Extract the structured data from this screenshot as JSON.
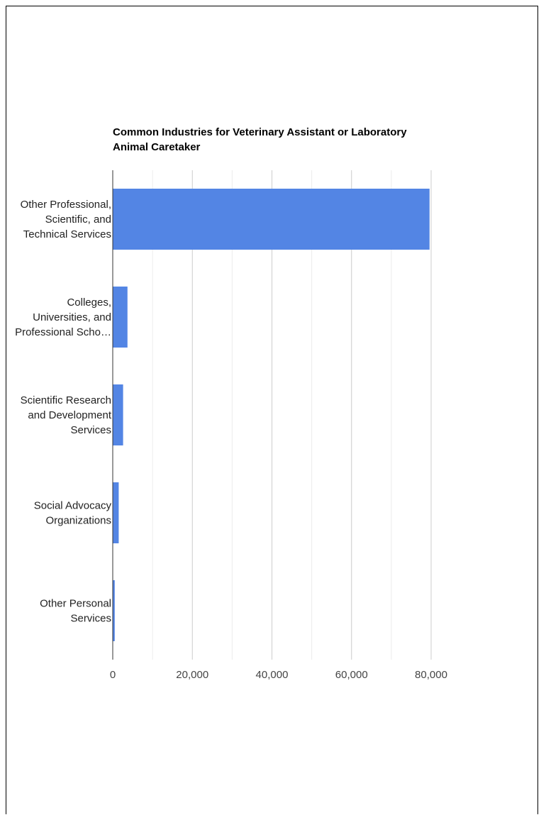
{
  "chart_data": {
    "type": "bar",
    "orientation": "horizontal",
    "title": "Common Industries for Veterinary Assistant or Laboratory Animal Caretaker",
    "title_lines": [
      "Common Industries for Veterinary Assistant or Laboratory",
      "Animal Caretaker"
    ],
    "categories": [
      "Other Professional, Scientific, and Technical Services",
      "Colleges, Universities, and Professional Schools",
      "Scientific Research and Development Services",
      "Social Advocacy Organizations",
      "Other Personal Services"
    ],
    "category_label_lines": [
      [
        "Other Professional,",
        "Scientific, and",
        "Technical Services"
      ],
      [
        "Colleges,",
        "Universities, and",
        "Professional Scho…"
      ],
      [
        "Scientific Research",
        "and Development",
        "Services"
      ],
      [
        "Social Advocacy",
        "Organizations"
      ],
      [
        "Other Personal",
        "Services"
      ]
    ],
    "values": [
      79600,
      3700,
      2600,
      1500,
      500
    ],
    "xlim": [
      0,
      80000
    ],
    "xticks": [
      0,
      20000,
      40000,
      60000,
      80000
    ],
    "xtick_labels": [
      "0",
      "20,000",
      "40,000",
      "60,000",
      "80,000"
    ],
    "minor_gridlines": true,
    "bar_color": "#5385e4",
    "xlabel": "",
    "ylabel": ""
  }
}
